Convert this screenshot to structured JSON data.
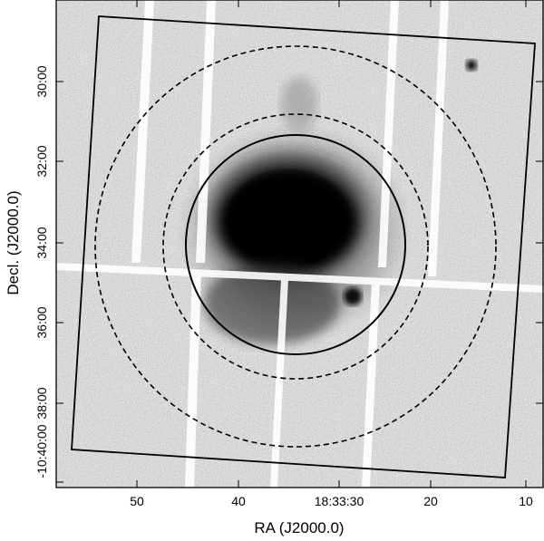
{
  "figure": {
    "xlabel": "RA (J2000.0)",
    "ylabel": "Decl. (J2000.0)",
    "x_ticks": [
      "50",
      "40",
      "18:33:30",
      "20",
      "10"
    ],
    "y_ticks": [
      "30:00",
      "32:00",
      "34:00",
      "36:00",
      "38:00",
      "-10:40:00"
    ],
    "colors": {
      "background": "#ffffff",
      "sky_noise": "#b7b7b7",
      "source": "#000000",
      "overlay_lines": "#000000"
    },
    "overlays": {
      "solid_circle": "extraction-region",
      "dashed_circles": 2,
      "field_of_view": "rotated-square",
      "chip_gaps": "white-stripes"
    }
  }
}
